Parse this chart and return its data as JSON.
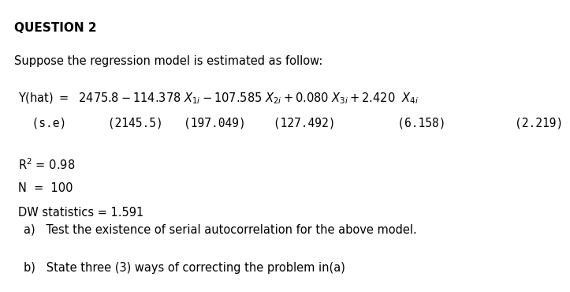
{
  "title": "QUESTION 2",
  "line1": "Suppose the regression model is estimated as follow:",
  "eq_text": "Y(hat) $=\\ \\ 2475.8 - 114.378\\ X_{1i} - 107.585\\ X_{2i} + 0.080\\ X_{3i} + 2.420\\ \\ X_{4i}$",
  "se_line": "  (s.e)      (2145.5)   (197.049)    (127.492)         (6.158)          (2.219)",
  "stats1": "R$^2$ = 0.98",
  "stats2": "N  =  100",
  "stats3": "DW statistics = 1.591",
  "qa": "a)   Test the existence of serial autocorrelation for the above model.",
  "qb": "b)   State three (3) ways of correcting the problem in(a)",
  "bg_color": "#ffffff",
  "text_color": "#000000",
  "font_size": 10.5,
  "title_font_size": 11
}
